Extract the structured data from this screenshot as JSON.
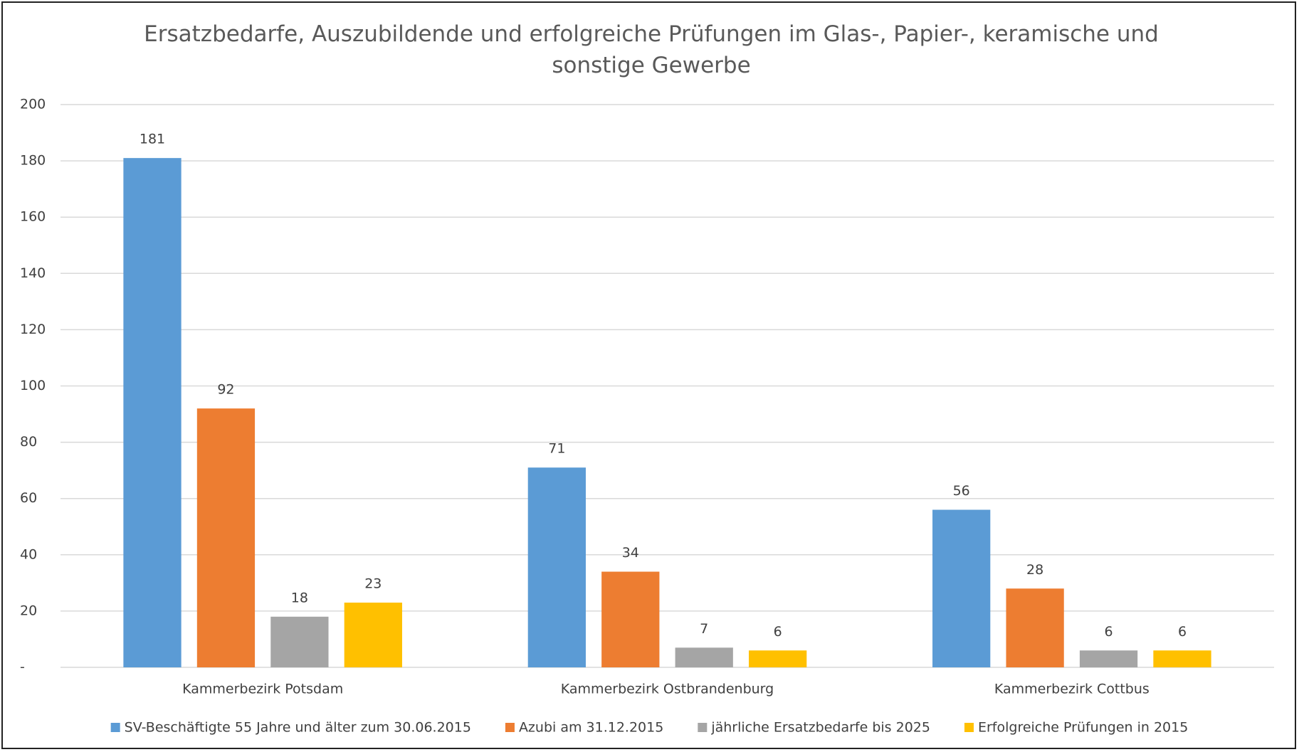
{
  "chart_data": {
    "type": "bar",
    "title": "Ersatzbedarfe, Auszubildende und erfolgreiche Prüfungen im Glas-, Papier-, keramische und sonstige Gewerbe",
    "categories": [
      "Kammerbezirk Potsdam",
      "Kammerbezirk Ostbrandenburg",
      "Kammerbezirk Cottbus"
    ],
    "series": [
      {
        "name": "SV-Beschäftigte 55 Jahre und älter zum 30.06.2015",
        "color": "#5b9bd5",
        "values": [
          181,
          71,
          56
        ]
      },
      {
        "name": "Azubi am 31.12.2015",
        "color": "#ed7d31",
        "values": [
          92,
          34,
          28
        ]
      },
      {
        "name": "jährliche Ersatzbedarfe bis 2025",
        "color": "#a5a5a5",
        "values": [
          18,
          7,
          6
        ]
      },
      {
        "name": "Erfolgreiche Prüfungen in 2015",
        "color": "#ffc000",
        "values": [
          23,
          6,
          6
        ]
      }
    ],
    "ylim": [
      0,
      200
    ],
    "yticks": [
      {
        "value": 0,
        "label": "-"
      },
      20,
      40,
      60,
      80,
      100,
      120,
      140,
      160,
      180,
      200
    ],
    "grid": true,
    "legend": "bottom"
  }
}
